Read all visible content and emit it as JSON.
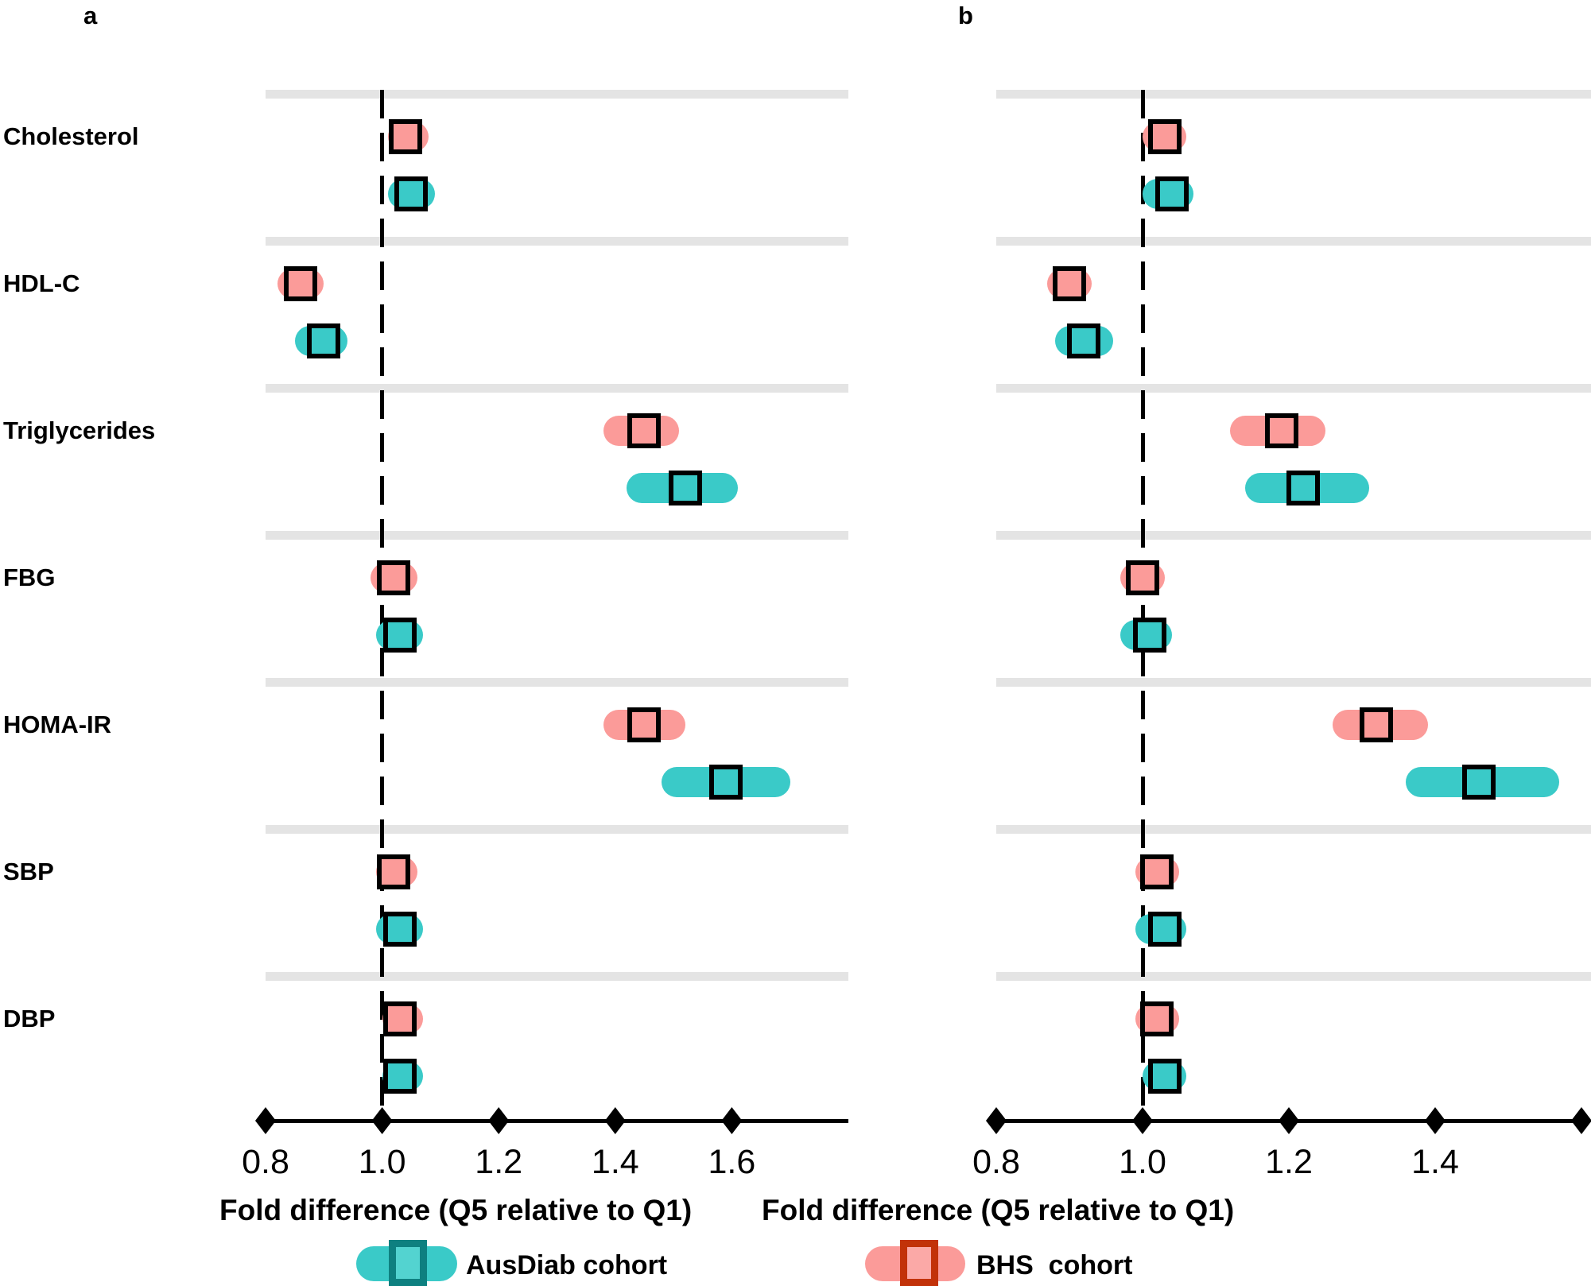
{
  "categories": [
    "Cholesterol",
    "HDL-C",
    "Triglycerides",
    "FBG",
    "HOMA-IR",
    "SBP",
    "DBP"
  ],
  "legend": {
    "items": [
      {
        "name": "AusDiab cohort",
        "pill_color": "#3ACAC8",
        "box_border_color": "#0E8080",
        "box_fill_color": "#53D3D0"
      },
      {
        "name": "BHS  cohort",
        "pill_color": "#FB9B99",
        "box_border_color": "#C23209",
        "box_fill_color": "#FBA9A7"
      }
    ]
  },
  "colors": {
    "ausdiab_teal": "#3ACAC8",
    "bhs_pink": "#FB9B99",
    "separator_band": "#E4E4E4",
    "axis_black": "#000000"
  },
  "chart_data": [
    {
      "type": "scatter",
      "subtype": "forest-plot",
      "panel_label": "a",
      "xlabel": "Fold difference (Q5 relative to Q1)",
      "x_range": [
        0.8,
        1.8
      ],
      "reference_line": 1.0,
      "grid": "group-separator-bands",
      "ticks": [
        {
          "value": 0.8,
          "label": "0.8"
        },
        {
          "value": 1.0,
          "label": "1.0"
        },
        {
          "value": 1.2,
          "label": "1.2"
        },
        {
          "value": 1.4,
          "label": "1.4"
        },
        {
          "value": 1.6,
          "label": "1.6"
        }
      ],
      "categories": [
        "Cholesterol",
        "HDL-C",
        "Triglycerides",
        "FBG",
        "HOMA-IR",
        "SBP",
        "DBP"
      ],
      "series": [
        {
          "name": "BHS cohort",
          "color": "#FB9B99",
          "points": [
            {
              "category": "Cholesterol",
              "value": 1.04,
              "ci": [
                1.01,
                1.08
              ]
            },
            {
              "category": "HDL-C",
              "value": 0.86,
              "ci": [
                0.82,
                0.9
              ]
            },
            {
              "category": "Triglycerides",
              "value": 1.45,
              "ci": [
                1.38,
                1.51
              ]
            },
            {
              "category": "FBG",
              "value": 1.02,
              "ci": [
                0.98,
                1.06
              ]
            },
            {
              "category": "HOMA-IR",
              "value": 1.45,
              "ci": [
                1.38,
                1.52
              ]
            },
            {
              "category": "SBP",
              "value": 1.02,
              "ci": [
                0.99,
                1.06
              ]
            },
            {
              "category": "DBP",
              "value": 1.03,
              "ci": [
                1.0,
                1.07
              ]
            }
          ]
        },
        {
          "name": "AusDiab cohort",
          "color": "#3ACAC8",
          "points": [
            {
              "category": "Cholesterol",
              "value": 1.05,
              "ci": [
                1.01,
                1.09
              ]
            },
            {
              "category": "HDL-C",
              "value": 0.9,
              "ci": [
                0.85,
                0.94
              ]
            },
            {
              "category": "Triglycerides",
              "value": 1.52,
              "ci": [
                1.42,
                1.61
              ]
            },
            {
              "category": "FBG",
              "value": 1.03,
              "ci": [
                0.99,
                1.07
              ]
            },
            {
              "category": "HOMA-IR",
              "value": 1.59,
              "ci": [
                1.48,
                1.7
              ]
            },
            {
              "category": "SBP",
              "value": 1.03,
              "ci": [
                0.99,
                1.07
              ]
            },
            {
              "category": "DBP",
              "value": 1.03,
              "ci": [
                1.0,
                1.07
              ]
            }
          ]
        }
      ]
    },
    {
      "type": "scatter",
      "subtype": "forest-plot",
      "panel_label": "b",
      "xlabel": "Fold difference (Q5 relative to Q1)",
      "x_range": [
        0.8,
        1.61
      ],
      "reference_line": 1.0,
      "grid": "group-separator-bands",
      "ticks": [
        {
          "value": 0.8,
          "label": "0.8"
        },
        {
          "value": 1.0,
          "label": "1.0"
        },
        {
          "value": 1.2,
          "label": "1.2"
        },
        {
          "value": 1.4,
          "label": "1.4"
        },
        {
          "value": 1.6,
          "label": ""
        }
      ],
      "categories": [
        "Cholesterol",
        "HDL-C",
        "Triglycerides",
        "FBG",
        "HOMA-IR",
        "SBP",
        "DBP"
      ],
      "series": [
        {
          "name": "BHS cohort",
          "color": "#FB9B99",
          "points": [
            {
              "category": "Cholesterol",
              "value": 1.03,
              "ci": [
                1.0,
                1.06
              ]
            },
            {
              "category": "HDL-C",
              "value": 0.9,
              "ci": [
                0.87,
                0.93
              ]
            },
            {
              "category": "Triglycerides",
              "value": 1.19,
              "ci": [
                1.12,
                1.25
              ]
            },
            {
              "category": "FBG",
              "value": 1.0,
              "ci": [
                0.97,
                1.03
              ]
            },
            {
              "category": "HOMA-IR",
              "value": 1.32,
              "ci": [
                1.26,
                1.39
              ]
            },
            {
              "category": "SBP",
              "value": 1.02,
              "ci": [
                0.99,
                1.05
              ]
            },
            {
              "category": "DBP",
              "value": 1.02,
              "ci": [
                0.99,
                1.05
              ]
            }
          ]
        },
        {
          "name": "AusDiab cohort",
          "color": "#3ACAC8",
          "points": [
            {
              "category": "Cholesterol",
              "value": 1.04,
              "ci": [
                1.0,
                1.07
              ]
            },
            {
              "category": "HDL-C",
              "value": 0.92,
              "ci": [
                0.88,
                0.96
              ]
            },
            {
              "category": "Triglycerides",
              "value": 1.22,
              "ci": [
                1.14,
                1.31
              ]
            },
            {
              "category": "FBG",
              "value": 1.01,
              "ci": [
                0.97,
                1.04
              ]
            },
            {
              "category": "HOMA-IR",
              "value": 1.46,
              "ci": [
                1.36,
                1.57
              ]
            },
            {
              "category": "SBP",
              "value": 1.03,
              "ci": [
                0.99,
                1.06
              ]
            },
            {
              "category": "DBP",
              "value": 1.03,
              "ci": [
                1.0,
                1.06
              ]
            }
          ]
        }
      ]
    }
  ]
}
